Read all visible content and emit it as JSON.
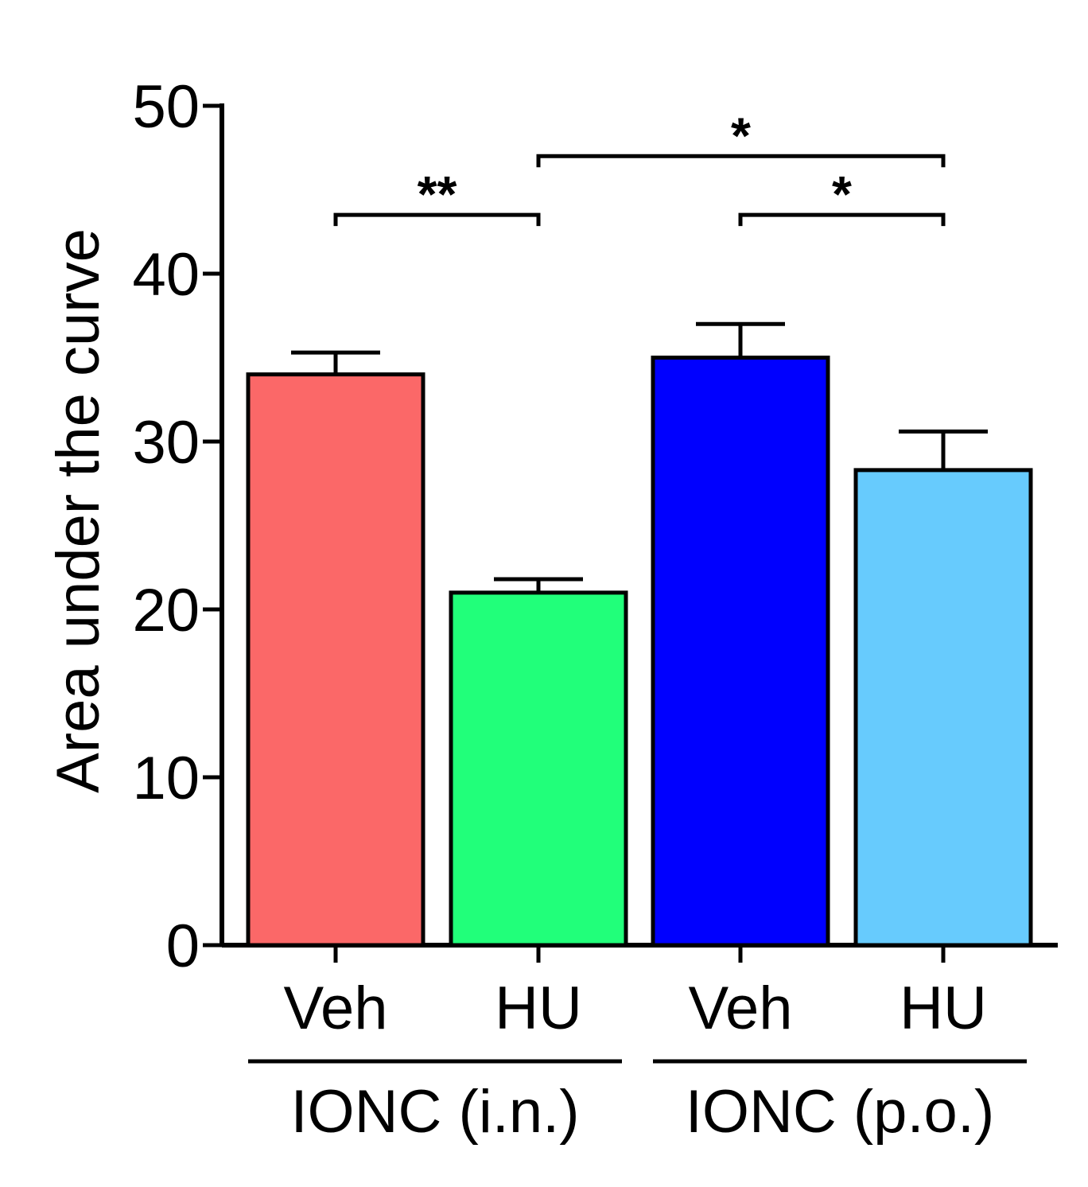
{
  "chart_data": {
    "type": "bar",
    "title": "",
    "xlabel": "",
    "ylabel": "Area under the curve",
    "ylim": [
      0,
      50
    ],
    "yticks": [
      "0",
      "10",
      "20",
      "30",
      "40",
      "50"
    ],
    "grid": false,
    "categories": [
      "Veh",
      "HU",
      "Veh",
      "HU"
    ],
    "values": [
      34,
      21,
      35,
      28.3
    ],
    "errors": [
      1.3,
      0.8,
      2.0,
      2.3
    ],
    "colors": [
      "#fb6868",
      "#21ff7a",
      "#0000ff",
      "#67cbfd"
    ],
    "groups": [
      {
        "label": "IONC (i.n.)",
        "start": 0,
        "end": 1
      },
      {
        "label": "IONC (p.o.)",
        "start": 2,
        "end": 3
      }
    ],
    "annotations": [
      {
        "from": 0,
        "to": 1,
        "level": 43.5,
        "label": "**"
      },
      {
        "from": 1,
        "to": 3,
        "level": 47,
        "label": "*"
      },
      {
        "from": 2,
        "to": 3,
        "level": 43.5,
        "label": "*"
      }
    ]
  }
}
